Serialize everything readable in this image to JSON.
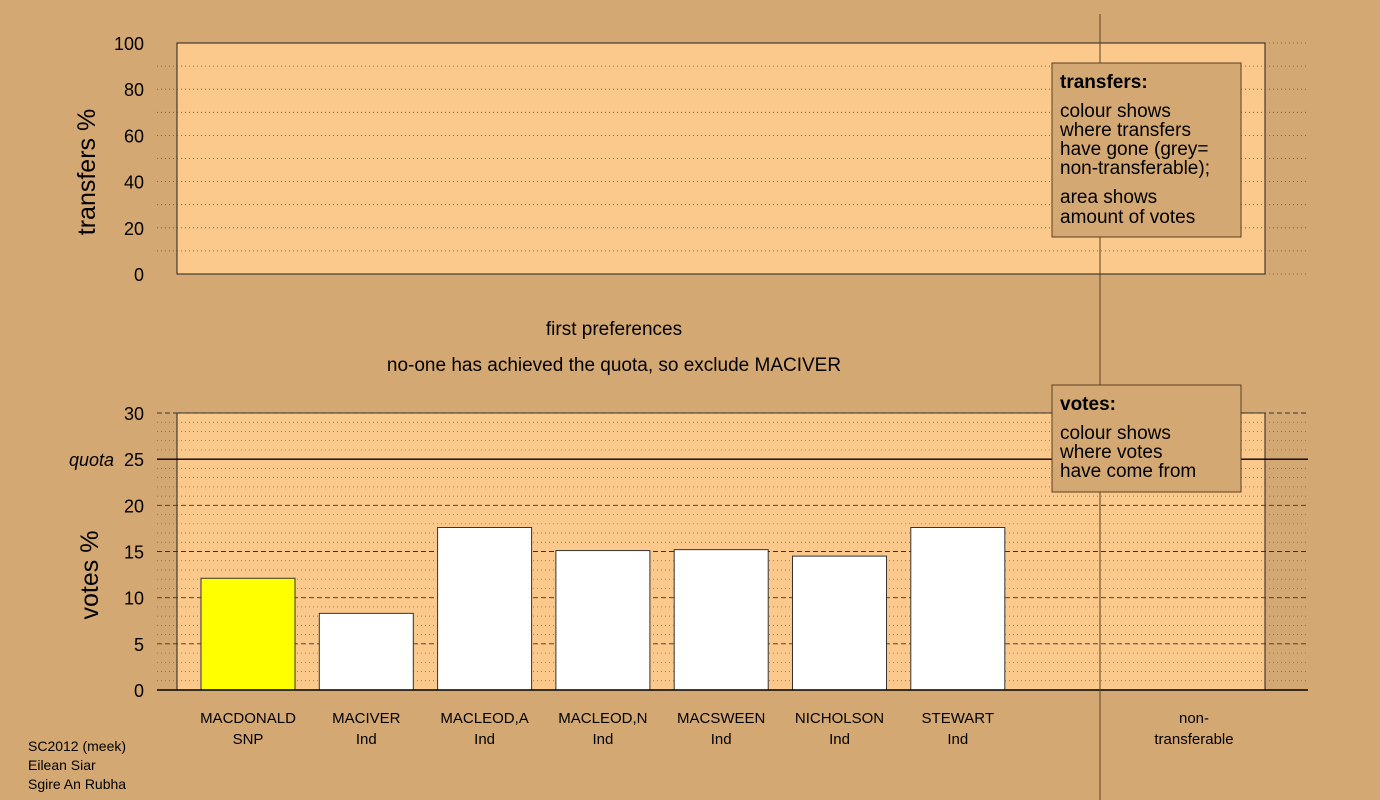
{
  "chart_data": [
    {
      "type": "bar",
      "ylabel": "transfers %",
      "ylim": [
        0,
        100
      ],
      "yticks": [
        0,
        20,
        40,
        60,
        80,
        100
      ],
      "values": []
    },
    {
      "type": "bar",
      "ylabel": "votes %",
      "ylim": [
        0,
        30
      ],
      "yticks": [
        0,
        5,
        10,
        15,
        20,
        25,
        30
      ],
      "quota": 25,
      "quota_label": "quota",
      "categories": [
        {
          "name": "MACDONALD",
          "party": "SNP"
        },
        {
          "name": "MACIVER",
          "party": "Ind"
        },
        {
          "name": "MACLEOD,A",
          "party": "Ind"
        },
        {
          "name": "MACLEOD,N",
          "party": "Ind"
        },
        {
          "name": "MACSWEEN",
          "party": "Ind"
        },
        {
          "name": "NICHOLSON",
          "party": "Ind"
        },
        {
          "name": "STEWART",
          "party": "Ind"
        }
      ],
      "values": [
        12.1,
        8.3,
        17.6,
        15.1,
        15.2,
        14.5,
        17.6
      ],
      "bar_colors": [
        "#ffff00",
        "#ffffff",
        "#ffffff",
        "#ffffff",
        "#ffffff",
        "#ffffff",
        "#ffffff"
      ],
      "nontransferable": {
        "name": "non-",
        "name2": "transferable",
        "value": 0
      }
    }
  ],
  "headings": {
    "stage": "first preferences",
    "status": "no-one has achieved the quota, so exclude MACIVER"
  },
  "legends": {
    "transfers": {
      "title": "transfers:",
      "lines1": [
        "colour shows",
        "where transfers",
        "have gone (grey=",
        "non-transferable);"
      ],
      "lines2": [
        "area shows",
        "amount of votes"
      ]
    },
    "votes": {
      "title": "votes:",
      "lines": [
        "colour shows",
        "where votes",
        "have come from"
      ]
    }
  },
  "footer": {
    "line1": "SC2012 (meek)",
    "line2": "Eilean Siar",
    "line3": "Sgire An Rubha"
  },
  "colors": {
    "background": "#d4a873",
    "plot": "#fcc98d",
    "legend_box": "#d4a873",
    "highlight": "#ffff00"
  }
}
